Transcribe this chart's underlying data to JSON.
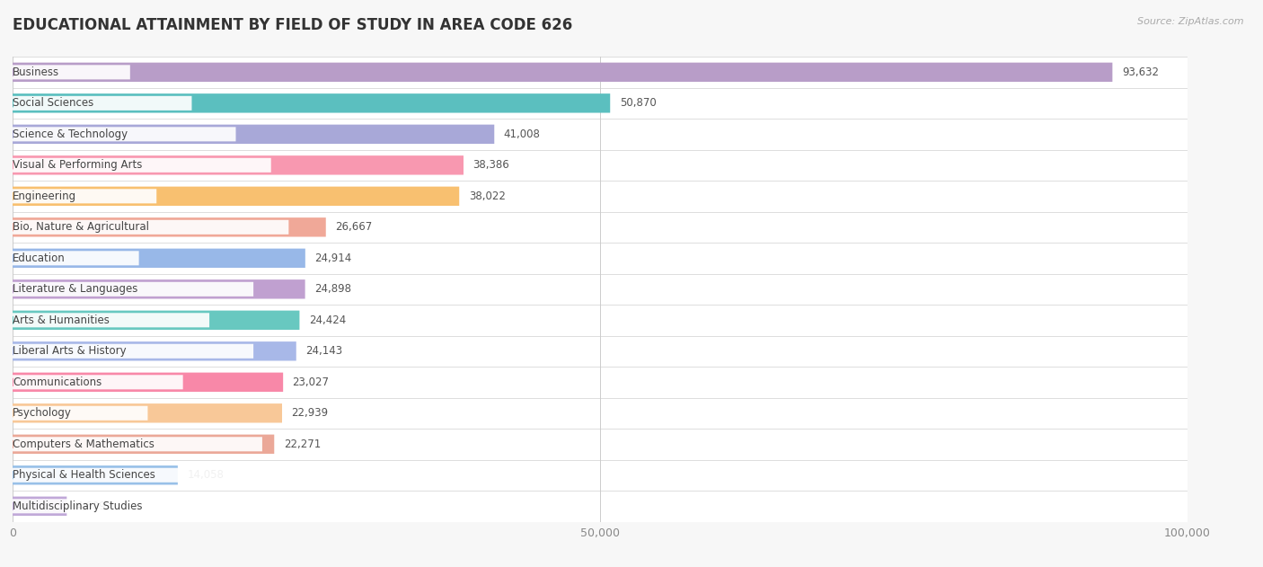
{
  "title": "EDUCATIONAL ATTAINMENT BY FIELD OF STUDY IN AREA CODE 626",
  "source": "Source: ZipAtlas.com",
  "categories": [
    "Business",
    "Social Sciences",
    "Science & Technology",
    "Visual & Performing Arts",
    "Engineering",
    "Bio, Nature & Agricultural",
    "Education",
    "Literature & Languages",
    "Arts & Humanities",
    "Liberal Arts & History",
    "Communications",
    "Psychology",
    "Computers & Mathematics",
    "Physical & Health Sciences",
    "Multidisciplinary Studies"
  ],
  "values": [
    93632,
    50870,
    41008,
    38386,
    38022,
    26667,
    24914,
    24898,
    24424,
    24143,
    23027,
    22939,
    22271,
    14058,
    4609
  ],
  "bar_colors": [
    "#b89dc8",
    "#5bbfbf",
    "#a8a8d8",
    "#f898b0",
    "#f8c070",
    "#f0a898",
    "#98b8e8",
    "#c0a0d0",
    "#68c8c0",
    "#a8b8e8",
    "#f888a8",
    "#f8c898",
    "#eba898",
    "#98c0e8",
    "#c0a8d8"
  ],
  "xlim": [
    0,
    100000
  ],
  "xticks": [
    0,
    50000,
    100000
  ],
  "xticklabels": [
    "0",
    "50,000",
    "100,000"
  ],
  "background_color": "#f7f7f7",
  "row_bg_color": "#f0f0f0",
  "title_fontsize": 12,
  "bar_height": 0.62,
  "value_fontsize": 8.5,
  "label_fontsize": 8.5,
  "n_bars": 15
}
